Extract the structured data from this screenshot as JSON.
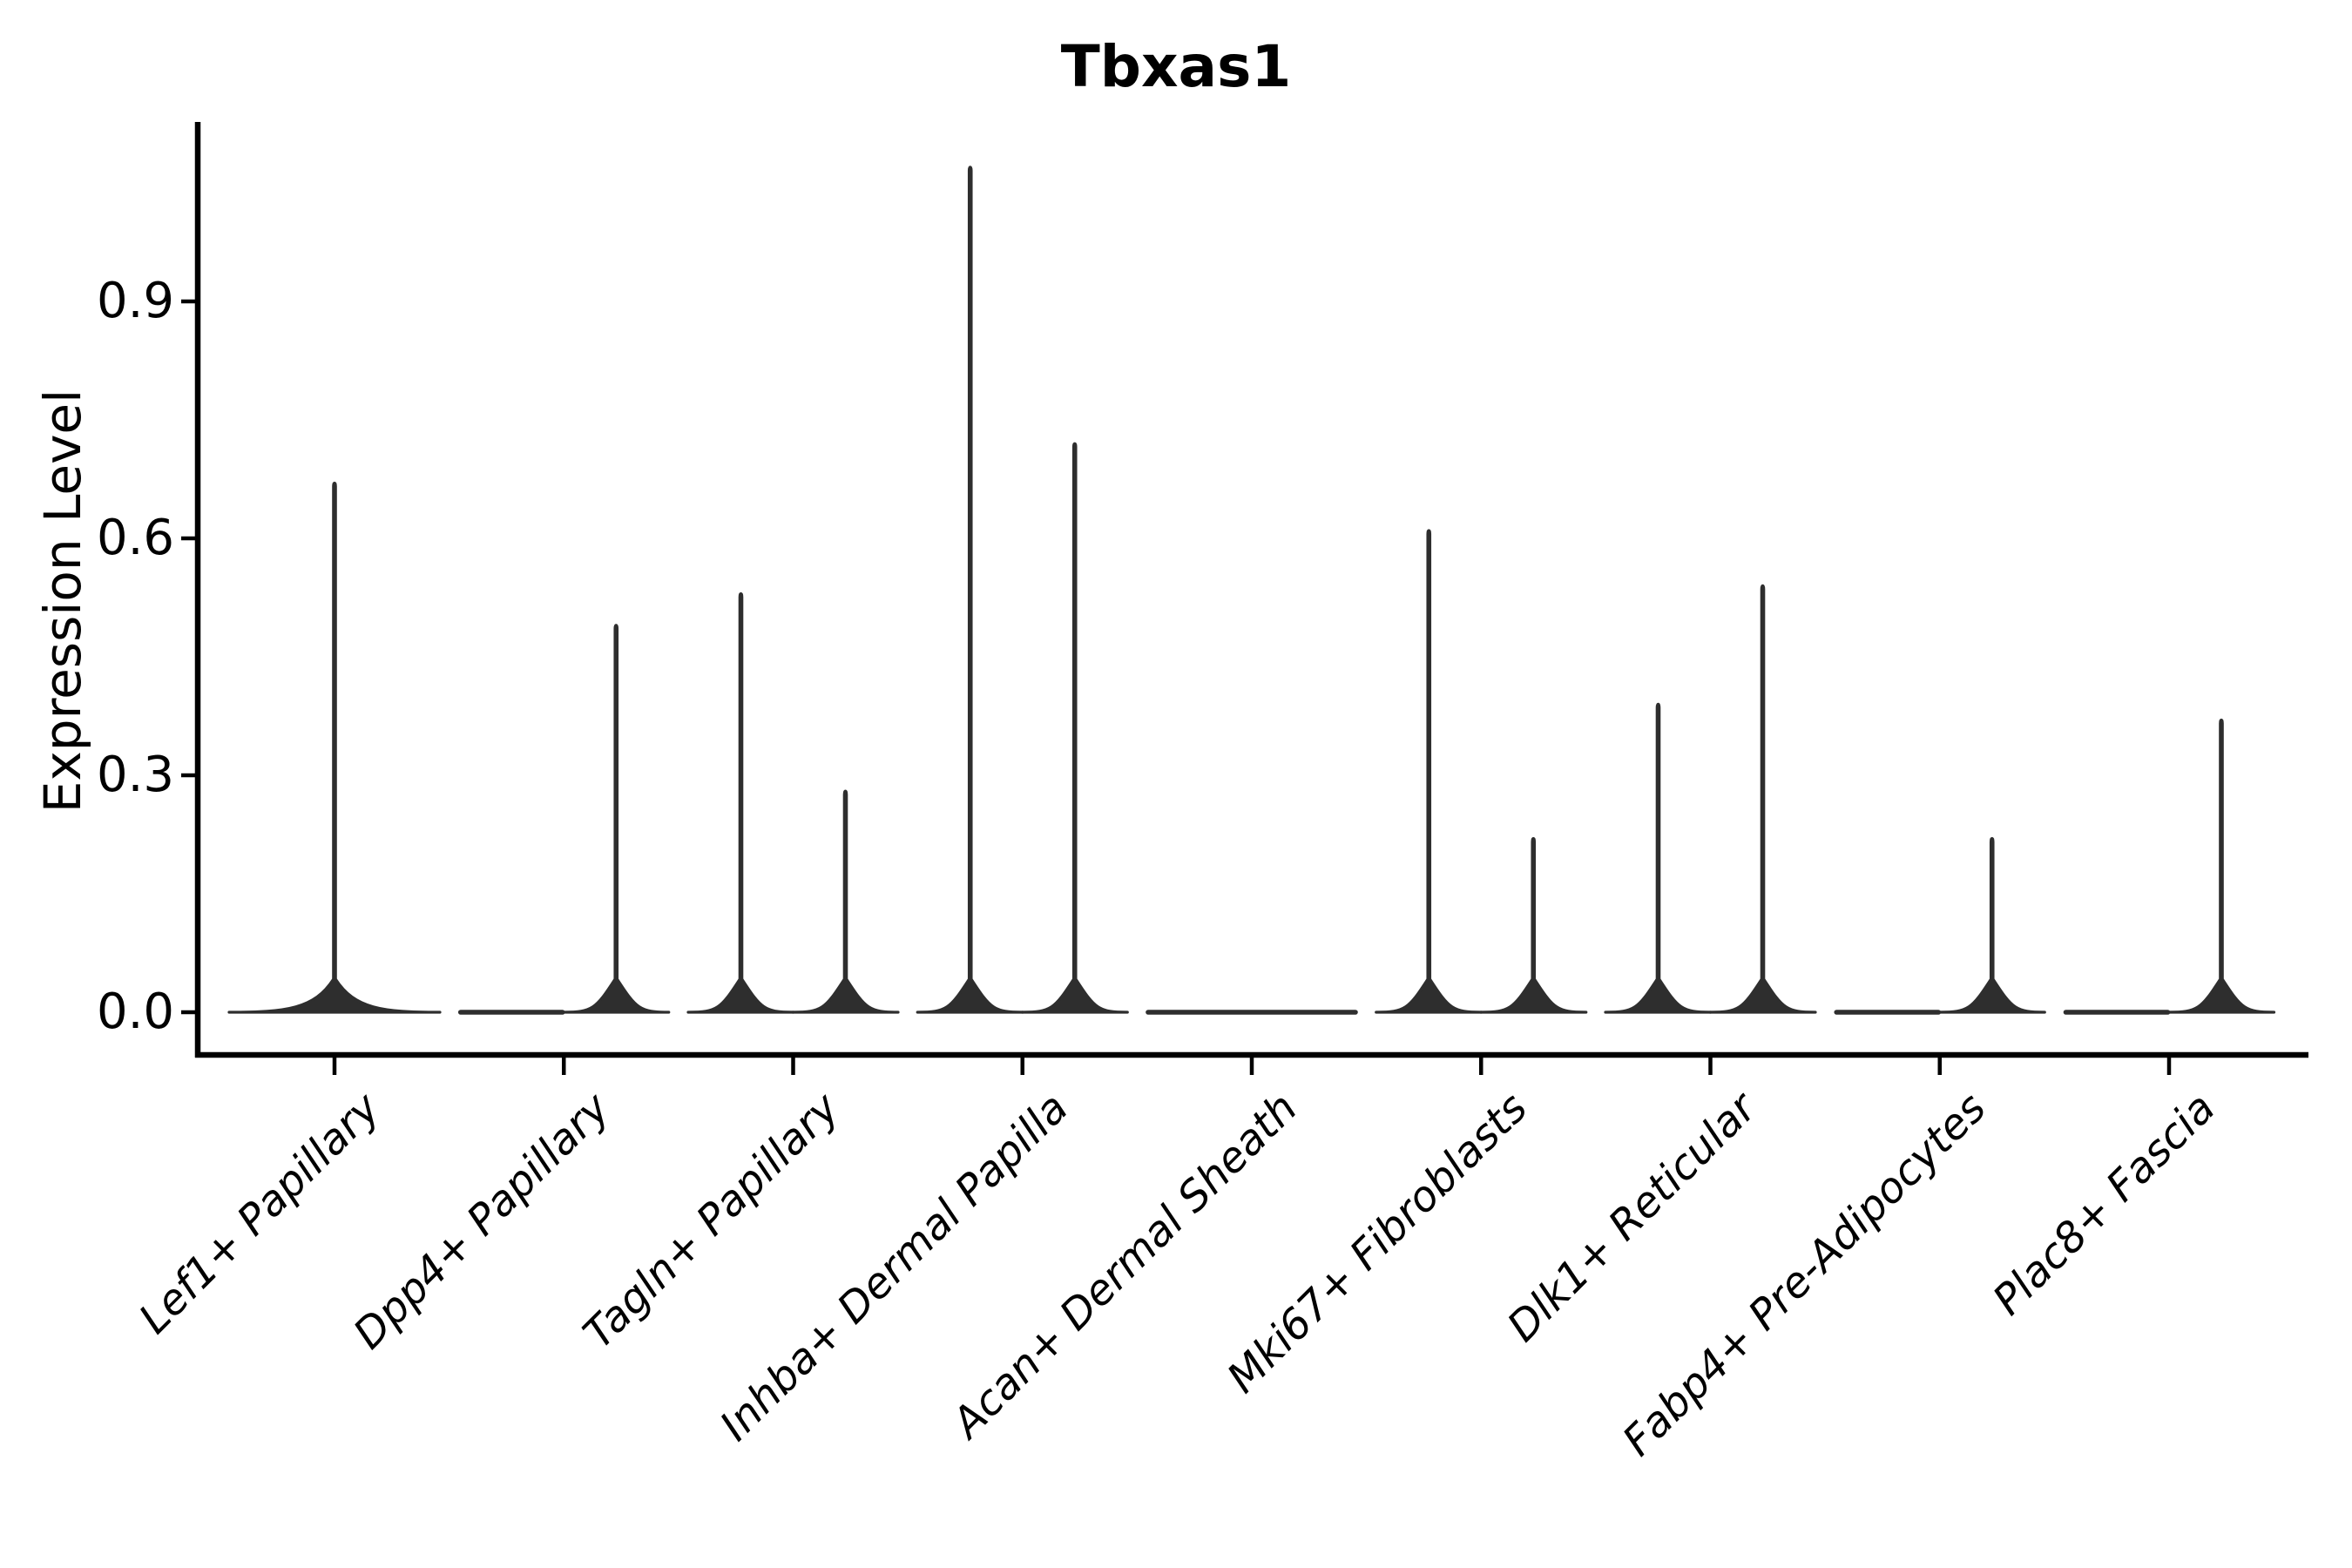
{
  "figure": {
    "background_color": "#ffffff",
    "title": "Tbxas1"
  },
  "chart_data": {
    "type": "violin",
    "title": "Tbxas1",
    "xlabel": "",
    "ylabel": "Expression Level",
    "ytick_labels": [
      "0.0",
      "0.3",
      "0.6",
      "0.9"
    ],
    "ytick_values": [
      0.0,
      0.3,
      0.6,
      0.9
    ],
    "ylim": [
      -0.054,
      1.127
    ],
    "grid": false,
    "legend": "none",
    "violin_color": "#2e2e2e",
    "axis_color": "#000000",
    "note": "Each category shows collapsed violin(s): wide flat base at expression 0 with a thin spike reaching the maximum expression value; position left/right = dodged sub-violin, center = single full-width violin",
    "categories": [
      {
        "label": "Lef1+ Papillary",
        "violins": [
          {
            "position": "center",
            "max": 0.67
          }
        ]
      },
      {
        "label": "Dpp4+ Papillary",
        "violins": [
          {
            "position": "left",
            "max": 0.0
          },
          {
            "position": "right",
            "max": 0.49
          }
        ]
      },
      {
        "label": "Tagln+ Papillary",
        "violins": [
          {
            "position": "left",
            "max": 0.53
          },
          {
            "position": "right",
            "max": 0.28
          }
        ]
      },
      {
        "label": "Inhba+ Dermal Papilla",
        "violins": [
          {
            "position": "left",
            "max": 1.07
          },
          {
            "position": "right",
            "max": 0.72
          }
        ]
      },
      {
        "label": "Acan+ Dermal Sheath",
        "violins": [
          {
            "position": "center",
            "max": 0.0
          }
        ]
      },
      {
        "label": "Mki67+ Fibroblasts",
        "violins": [
          {
            "position": "left",
            "max": 0.61
          },
          {
            "position": "right",
            "max": 0.22
          }
        ]
      },
      {
        "label": "Dlk1+ Reticular",
        "violins": [
          {
            "position": "left",
            "max": 0.39
          },
          {
            "position": "right",
            "max": 0.54
          }
        ]
      },
      {
        "label": "Fabp4+ Pre-Adipocytes",
        "violins": [
          {
            "position": "left",
            "max": 0.0
          },
          {
            "position": "right",
            "max": 0.22
          }
        ]
      },
      {
        "label": "Plac8+ Fascia",
        "violins": [
          {
            "position": "left",
            "max": 0.0
          },
          {
            "position": "right",
            "max": 0.37
          }
        ]
      }
    ]
  }
}
